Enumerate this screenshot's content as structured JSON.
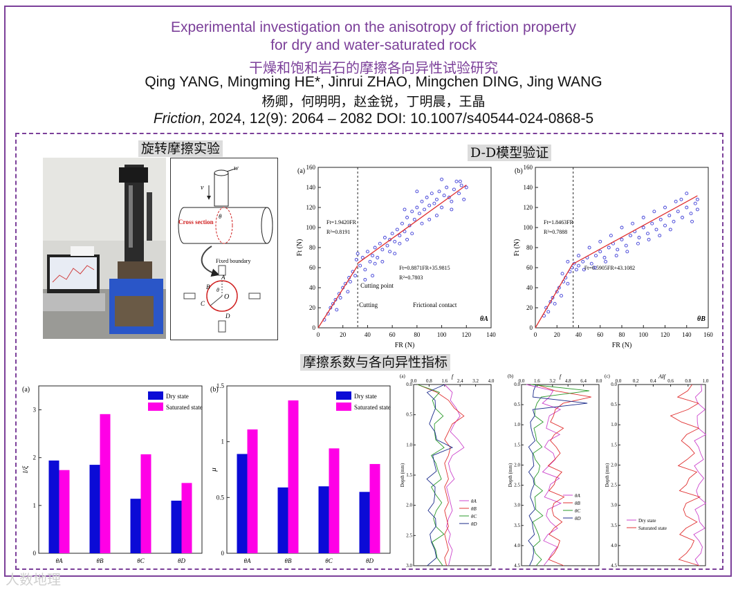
{
  "header": {
    "title_en_line1": "Experimental investigation on the anisotropy of friction property",
    "title_en_line2": "for dry and water-saturated rock",
    "title_cn": "干燥和饱和岩石的摩擦各向异性试验研究",
    "authors_en": "Qing YANG, Mingming HE*, Jinrui ZHAO, Mingchen DING, Jing WANG",
    "authors_cn": "杨卿，何明明，赵金锐，丁明晨，王晶",
    "journal": "Friction",
    "citation": ", 2024, 12(9): 2064 – 2082 DOI: 10.1007/s40544-024-0868-5"
  },
  "sections": {
    "rotary": "旋转摩擦实验",
    "dd": "D-D模型验证",
    "coef": "摩擦系数与各向异性指标"
  },
  "schematic": {
    "w": "w",
    "v": "v",
    "cross_section": "Cross section",
    "theta": "θ",
    "fixed_boundary": "Fixed boundary",
    "A": "A",
    "B": "B",
    "C": "C",
    "D": "D",
    "O": "O"
  },
  "colors": {
    "accent": "#7b3f99",
    "dry": "#0b0bd6",
    "saturated": "#ff00e6",
    "fit": "#e03030",
    "dots": "#3a3ad6"
  },
  "chart_data": [
    {
      "type": "scatter",
      "panel": "(a)",
      "label": "θA",
      "xlabel": "FR (N)",
      "ylabel": "Ft (N)",
      "xlim": [
        0,
        140
      ],
      "ylim": [
        0,
        160
      ],
      "xticks": [
        0,
        20,
        40,
        60,
        80,
        100,
        120,
        140
      ],
      "yticks": [
        0,
        20,
        40,
        60,
        80,
        100,
        120,
        140,
        160
      ],
      "cutting_point_x": 32,
      "fit1": {
        "label": "Ft=1.9420FR",
        "r2": "R²=0.8191",
        "x": [
          0,
          32
        ]
      },
      "fit2": {
        "label": "Ft=0.8871FR+35.9815",
        "r2": "R²=0.7803",
        "x": [
          32,
          120
        ]
      },
      "annotations": [
        "Cutting point",
        "Cutting",
        "Frictional contact"
      ],
      "points": [
        [
          5,
          8
        ],
        [
          8,
          14
        ],
        [
          10,
          20
        ],
        [
          12,
          24
        ],
        [
          14,
          28
        ],
        [
          15,
          18
        ],
        [
          17,
          34
        ],
        [
          18,
          30
        ],
        [
          20,
          40
        ],
        [
          22,
          44
        ],
        [
          24,
          36
        ],
        [
          25,
          50
        ],
        [
          26,
          46
        ],
        [
          28,
          56
        ],
        [
          30,
          52
        ],
        [
          31,
          68
        ],
        [
          32,
          74
        ],
        [
          34,
          62
        ],
        [
          36,
          70
        ],
        [
          38,
          58
        ],
        [
          40,
          76
        ],
        [
          42,
          66
        ],
        [
          44,
          72
        ],
        [
          46,
          80
        ],
        [
          48,
          70
        ],
        [
          50,
          84
        ],
        [
          52,
          78
        ],
        [
          54,
          90
        ],
        [
          56,
          82
        ],
        [
          58,
          88
        ],
        [
          60,
          94
        ],
        [
          62,
          86
        ],
        [
          64,
          98
        ],
        [
          66,
          92
        ],
        [
          68,
          104
        ],
        [
          70,
          96
        ],
        [
          72,
          110
        ],
        [
          74,
          102
        ],
        [
          76,
          116
        ],
        [
          78,
          108
        ],
        [
          80,
          120
        ],
        [
          82,
          114
        ],
        [
          84,
          126
        ],
        [
          86,
          118
        ],
        [
          88,
          130
        ],
        [
          90,
          122
        ],
        [
          92,
          134
        ],
        [
          94,
          124
        ],
        [
          96,
          128
        ],
        [
          98,
          136
        ],
        [
          100,
          120
        ],
        [
          102,
          132
        ],
        [
          104,
          140
        ],
        [
          106,
          130
        ],
        [
          108,
          126
        ],
        [
          110,
          138
        ],
        [
          112,
          146
        ],
        [
          114,
          134
        ],
        [
          116,
          142
        ],
        [
          118,
          128
        ],
        [
          120,
          140
        ],
        [
          90,
          108
        ],
        [
          84,
          104
        ],
        [
          72,
          88
        ],
        [
          66,
          84
        ],
        [
          58,
          76
        ],
        [
          46,
          64
        ],
        [
          38,
          48
        ],
        [
          44,
          52
        ],
        [
          52,
          66
        ],
        [
          62,
          74
        ],
        [
          76,
          94
        ],
        [
          96,
          112
        ],
        [
          108,
          118
        ],
        [
          70,
          118
        ],
        [
          80,
          136
        ],
        [
          100,
          148
        ],
        [
          115,
          146
        ]
      ]
    },
    {
      "type": "scatter",
      "panel": "(b)",
      "label": "θB",
      "xlabel": "FR (N)",
      "ylabel": "Ft (N)",
      "xlim": [
        0,
        160
      ],
      "ylim": [
        0,
        160
      ],
      "xticks": [
        0,
        20,
        40,
        60,
        80,
        100,
        120,
        140,
        160
      ],
      "yticks": [
        0,
        20,
        40,
        60,
        80,
        100,
        120,
        140,
        160
      ],
      "cutting_point_x": 35,
      "fit1": {
        "label": "Ft=1.8463FR",
        "r2": "R²=0.7888",
        "x": [
          0,
          35
        ]
      },
      "fit2": {
        "label": "Ft=0.5905FR+43.1082",
        "r2": "",
        "x": [
          35,
          150
        ]
      },
      "points": [
        [
          8,
          12
        ],
        [
          10,
          20
        ],
        [
          12,
          16
        ],
        [
          14,
          26
        ],
        [
          16,
          30
        ],
        [
          18,
          24
        ],
        [
          20,
          36
        ],
        [
          22,
          40
        ],
        [
          24,
          32
        ],
        [
          26,
          46
        ],
        [
          28,
          50
        ],
        [
          30,
          44
        ],
        [
          32,
          56
        ],
        [
          34,
          60
        ],
        [
          36,
          64
        ],
        [
          38,
          58
        ],
        [
          40,
          62
        ],
        [
          44,
          66
        ],
        [
          48,
          70
        ],
        [
          52,
          64
        ],
        [
          56,
          72
        ],
        [
          60,
          76
        ],
        [
          64,
          70
        ],
        [
          68,
          80
        ],
        [
          72,
          84
        ],
        [
          76,
          78
        ],
        [
          80,
          88
        ],
        [
          84,
          82
        ],
        [
          88,
          92
        ],
        [
          92,
          96
        ],
        [
          96,
          90
        ],
        [
          100,
          100
        ],
        [
          104,
          94
        ],
        [
          108,
          104
        ],
        [
          112,
          98
        ],
        [
          116,
          108
        ],
        [
          120,
          102
        ],
        [
          124,
          112
        ],
        [
          128,
          106
        ],
        [
          132,
          116
        ],
        [
          136,
          110
        ],
        [
          140,
          120
        ],
        [
          144,
          114
        ],
        [
          148,
          124
        ],
        [
          150,
          128
        ],
        [
          40,
          72
        ],
        [
          50,
          80
        ],
        [
          60,
          86
        ],
        [
          70,
          92
        ],
        [
          80,
          100
        ],
        [
          90,
          104
        ],
        [
          100,
          110
        ],
        [
          110,
          116
        ],
        [
          120,
          120
        ],
        [
          130,
          126
        ],
        [
          140,
          134
        ],
        [
          135,
          128
        ],
        [
          25,
          54
        ],
        [
          30,
          66
        ],
        [
          45,
          58
        ],
        [
          55,
          60
        ],
        [
          65,
          66
        ],
        [
          75,
          72
        ],
        [
          85,
          76
        ],
        [
          95,
          84
        ],
        [
          105,
          88
        ],
        [
          115,
          92
        ],
        [
          125,
          98
        ],
        [
          145,
          106
        ],
        [
          150,
          118
        ]
      ]
    },
    {
      "type": "bar",
      "panel": "(a)",
      "ylabel": "l/ξ",
      "ylim": [
        0,
        3.5
      ],
      "yticks": [
        0,
        1,
        2,
        3
      ],
      "categories": [
        "θA",
        "θB",
        "θC",
        "θD"
      ],
      "legend": [
        "Dry state",
        "Saturated state"
      ],
      "series": [
        {
          "name": "Dry state",
          "values": [
            1.94,
            1.85,
            1.14,
            1.1
          ]
        },
        {
          "name": "Saturated state",
          "values": [
            1.74,
            2.91,
            2.07,
            1.47
          ]
        }
      ]
    },
    {
      "type": "bar",
      "panel": "(b)",
      "ylabel": "μ",
      "ylim": [
        0,
        1.5
      ],
      "yticks": [
        0,
        0.5,
        1.0,
        1.5
      ],
      "categories": [
        "θA",
        "θB",
        "θC",
        "θD"
      ],
      "legend": [
        "Dry state",
        "Saturated state"
      ],
      "series": [
        {
          "name": "Dry state",
          "values": [
            0.89,
            0.59,
            0.6,
            0.55
          ]
        },
        {
          "name": "Saturated state",
          "values": [
            1.11,
            1.37,
            0.94,
            0.8
          ]
        }
      ]
    },
    {
      "type": "line",
      "panel": "(a)",
      "xlabel": "f",
      "ylabel": "Depth (mm)",
      "xlim": [
        0,
        4
      ],
      "xticks": [
        "0.0",
        "0.8",
        "1.6",
        "2.4",
        "3.2",
        "4.0"
      ],
      "ylim": [
        0,
        3
      ],
      "yticks": [
        "0.0",
        "0.5",
        "1.0",
        "1.5",
        "2.0",
        "2.5",
        "3.0"
      ],
      "legend": [
        "θA",
        "θB",
        "θC",
        "θD"
      ]
    },
    {
      "type": "line",
      "panel": "(b)",
      "xlabel": "f",
      "ylabel": "Depth (mm)",
      "xlim": [
        0,
        8
      ],
      "xticks": [
        "0.0",
        "1.6",
        "3.2",
        "4.8",
        "6.4",
        "8.0"
      ],
      "ylim": [
        0,
        4.5
      ],
      "yticks": [
        "0.0",
        "0.5",
        "1.0",
        "1.5",
        "2.0",
        "2.5",
        "3.0",
        "3.5",
        "4.0",
        "4.5"
      ],
      "legend": [
        "θA",
        "θB",
        "θC",
        "θD"
      ]
    },
    {
      "type": "line",
      "panel": "(c)",
      "xlabel": "AIf",
      "ylabel": "Depth (mm)",
      "xlim": [
        0,
        1
      ],
      "xticks": [
        "0.0",
        "0.2",
        "0.4",
        "0.6",
        "0.8",
        "1.0"
      ],
      "ylim": [
        0,
        4.5
      ],
      "yticks": [
        "0.0",
        "0.5",
        "1.0",
        "1.5",
        "2.0",
        "2.5",
        "3.0",
        "3.5",
        "4.0",
        "4.5"
      ],
      "legend": [
        "Dry state",
        "Saturated state"
      ]
    }
  ],
  "watermark": "人数地理"
}
